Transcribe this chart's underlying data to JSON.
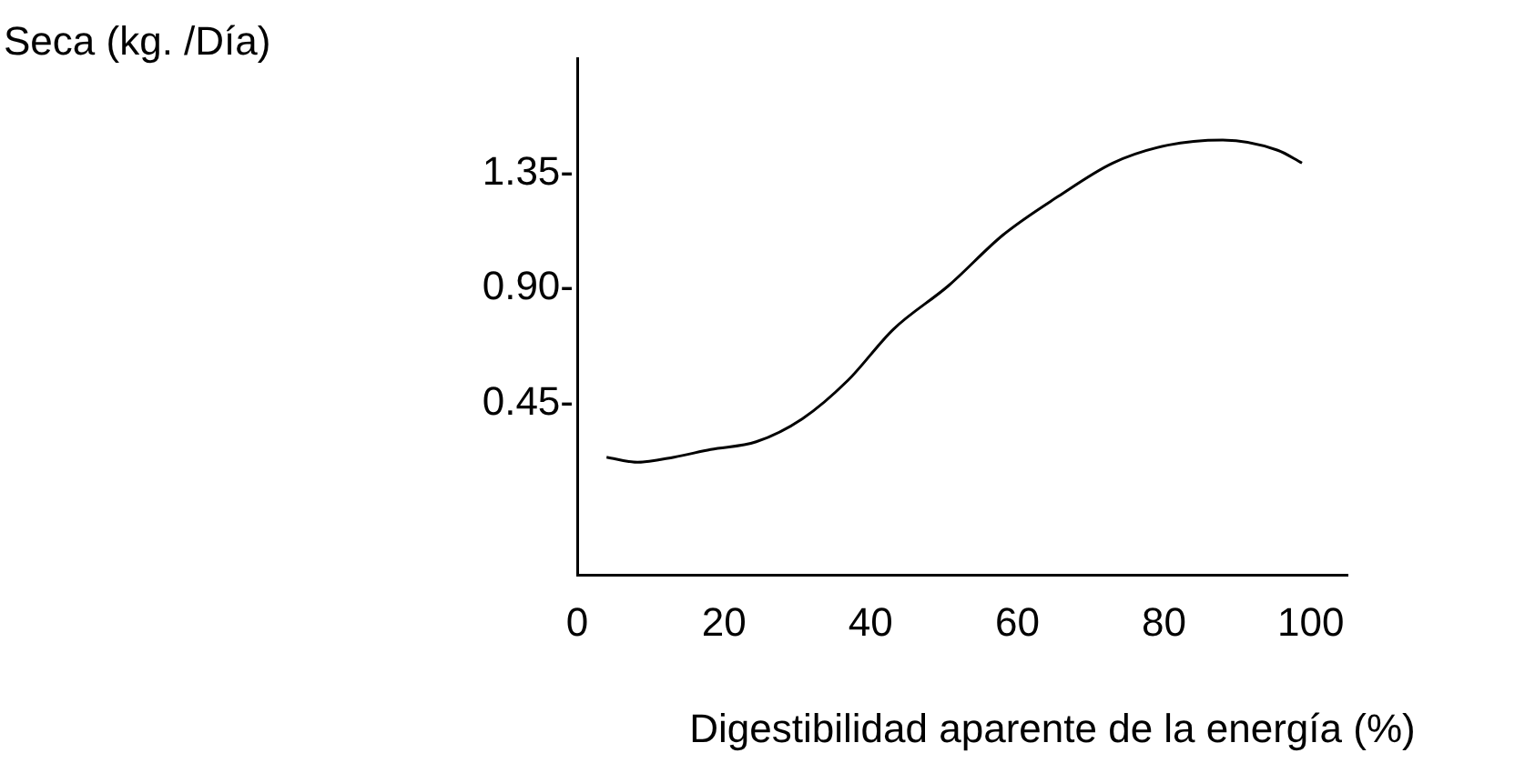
{
  "chart_data": {
    "type": "line",
    "annotations": [
      "Seca (kg. /Día)"
    ],
    "xlabel": "Digestibilidad aparente de la energía (%)",
    "x": [
      4,
      8.2,
      13.2,
      18.2,
      24.4,
      30.7,
      36.9,
      43.1,
      50.6,
      58.1,
      65.6,
      73,
      80.5,
      88,
      95.5,
      98.8
    ],
    "series": [
      {
        "color": "#000000",
        "values": [
          0.24,
          0.22,
          0.24,
          0.27,
          0.3,
          0.39,
          0.54,
          0.74,
          0.91,
          1.11,
          1.26,
          1.39,
          1.46,
          1.48,
          1.44,
          1.39
        ]
      }
    ],
    "xlim": [
      0,
      105
    ],
    "xticks": [
      0,
      20,
      40,
      60,
      80,
      100
    ],
    "ylim": [
      -0.22,
      1.8
    ],
    "yticks": [
      {
        "value": 0.45,
        "label": "0.45-"
      },
      {
        "value": 0.9,
        "label": "0.90-"
      },
      {
        "value": 1.35,
        "label": "1.35-"
      }
    ],
    "grid": false,
    "legend": false,
    "marker": "none",
    "line_style": "solid"
  }
}
